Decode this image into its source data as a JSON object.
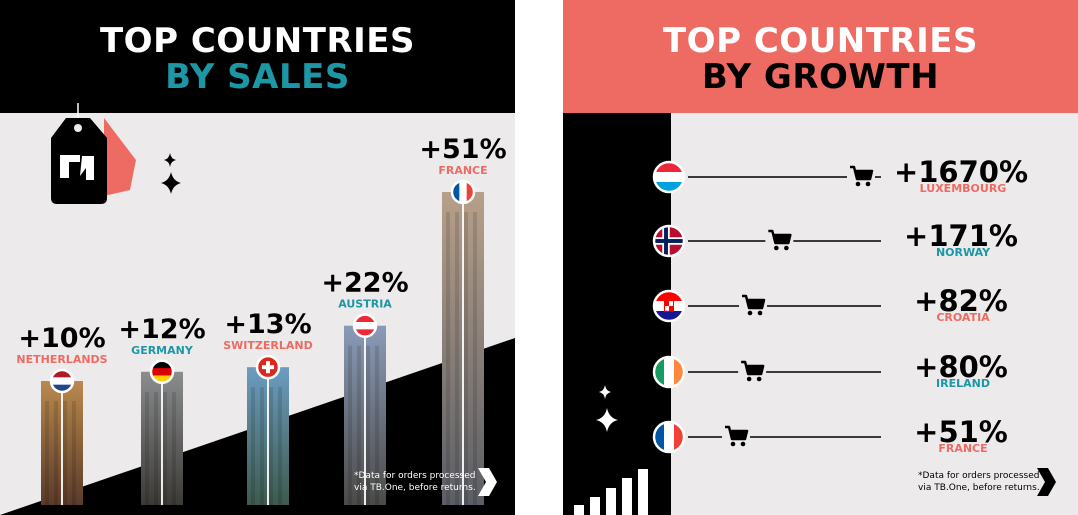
{
  "chart_data": [
    {
      "type": "bar",
      "title_line1": "TOP COUNTRIES",
      "title_line2": "BY SALES",
      "categories": [
        "NETHERLANDS",
        "GERMANY",
        "SWITZERLAND",
        "AUSTRIA",
        "FRANCE"
      ],
      "values": [
        10,
        12,
        13,
        22,
        51
      ],
      "value_labels": [
        "+10%",
        "+12%",
        "+13%",
        "+22%",
        "+51%"
      ],
      "footnote_line1": "*Data for orders processed",
      "footnote_line2": "via TB.One, before returns.",
      "colors": {
        "accent_blue": "#1d97a6",
        "accent_coral": "#ee6b63",
        "dark": "#000000",
        "light": "#eceaea"
      }
    },
    {
      "type": "bar",
      "orientation": "horizontal",
      "title_line1": "TOP COUNTRIES",
      "title_line2": "BY GROWTH",
      "categories": [
        "LUXEMBOURG",
        "NORWAY",
        "CROATIA",
        "IRELAND",
        "FRANCE"
      ],
      "values": [
        1670,
        171,
        82,
        80,
        51
      ],
      "value_labels": [
        "+1670%",
        "+171%",
        "+82%",
        "+80%",
        "+51%"
      ],
      "footnote_line1": "*Data for orders processed",
      "footnote_line2": "via TB.One, before returns.",
      "colors": {
        "accent_blue": "#1d97a6",
        "accent_coral": "#ee6b63",
        "dark": "#000000",
        "light": "#eceaea"
      }
    }
  ],
  "icons": [
    "price-tag-logo-icon",
    "sparkle-icon",
    "flag-icon",
    "shopping-cart-icon",
    "next-arrow-icon",
    "bar-chart-icon"
  ]
}
